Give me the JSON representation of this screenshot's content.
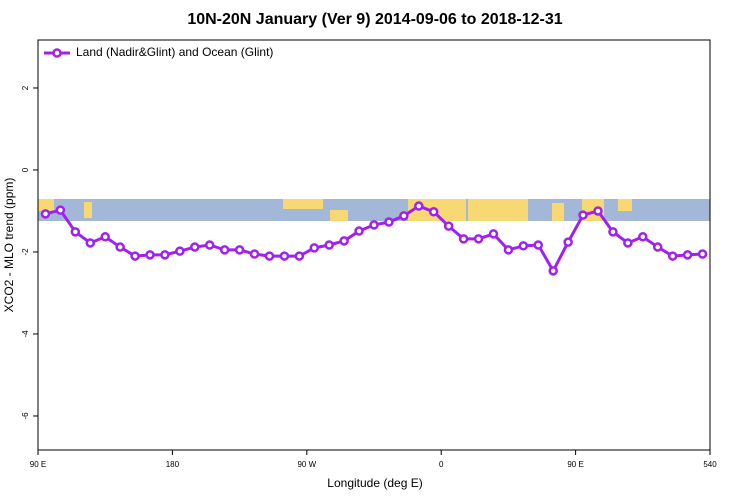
{
  "chart_data": {
    "type": "line",
    "title": "10N-20N January (Ver 9)   2014-09-06 to 2018-12-31",
    "xlabel": "Longitude (deg E)",
    "ylabel": "XCO2 - MLO trend (ppm)",
    "x": [
      95,
      105,
      115,
      125,
      135,
      145,
      155,
      165,
      175,
      185,
      195,
      205,
      215,
      225,
      235,
      245,
      255,
      265,
      275,
      285,
      295,
      305,
      315,
      325,
      335,
      345,
      355,
      365,
      375,
      385,
      395,
      405,
      415,
      425,
      435,
      445,
      455,
      465,
      475,
      485,
      495,
      505,
      515,
      525,
      535
    ],
    "series": [
      {
        "name": "Land (Nadir&Glint) and Ocean (Glint)",
        "color": "#a020f0",
        "values": [
          -1.07,
          -0.98,
          -1.51,
          -1.78,
          -1.63,
          -1.88,
          -2.1,
          -2.07,
          -2.07,
          -1.98,
          -1.88,
          -1.83,
          -1.95,
          -1.95,
          -2.05,
          -2.1,
          -2.1,
          -2.1,
          -1.9,
          -1.83,
          -1.73,
          -1.49,
          -1.34,
          -1.27,
          -1.12,
          -0.88,
          -1.02,
          -1.37,
          -1.68,
          -1.68,
          -1.56,
          -1.95,
          -1.85,
          -1.83,
          -2.46,
          -1.76,
          -1.1,
          -1.0,
          -1.51,
          -1.78,
          -1.63,
          -1.88,
          -2.1,
          -2.07,
          -2.05
        ]
      }
    ],
    "xlim": [
      90,
      540
    ],
    "xticks": [
      {
        "value": 90,
        "label": "90 E"
      },
      180,
      {
        "value": 270,
        "label": "90 W"
      },
      {
        "value": 360,
        "label": "0"
      },
      {
        "value": 450,
        "label": "90 E"
      },
      540
    ],
    "ylim": [
      -6.83,
      3.17
    ],
    "yticks": [
      2,
      0,
      -2,
      -4,
      -6
    ],
    "legend": "top-left"
  }
}
